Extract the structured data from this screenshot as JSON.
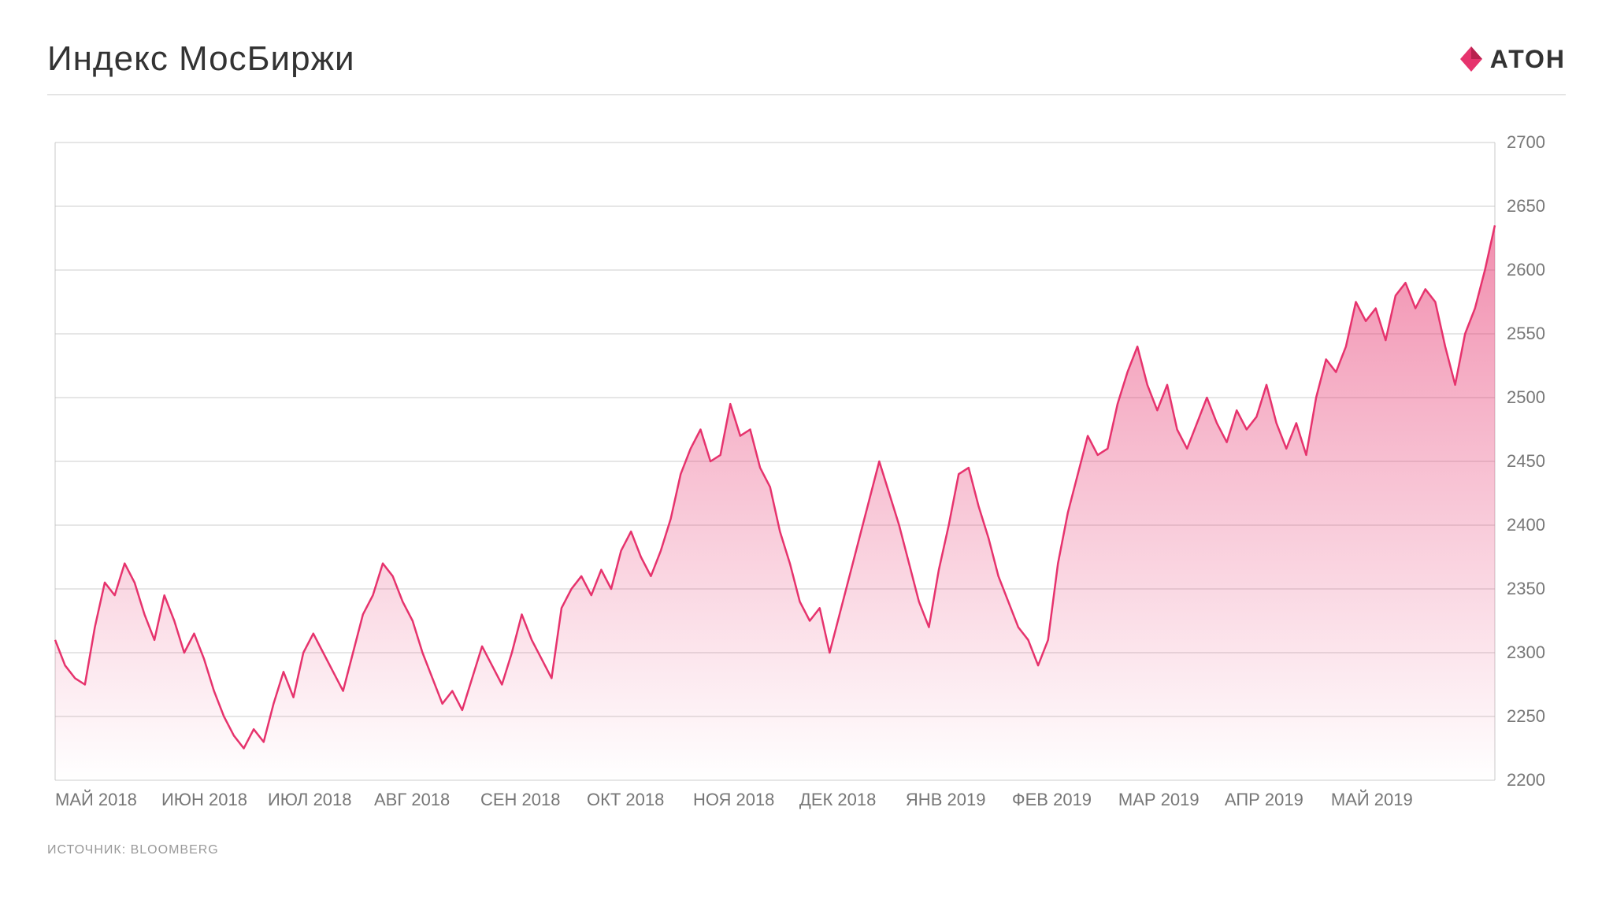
{
  "title": "Индекс МосБиржи",
  "logo_text": "АТОН",
  "source": "ИСТОЧНИК: BLOOMBERG",
  "chart": {
    "type": "area",
    "line_color": "#e6336d",
    "line_width": 2.5,
    "fill_gradient_top": "rgba(230,51,109,0.55)",
    "fill_gradient_bottom": "rgba(230,51,109,0.0)",
    "background_color": "#ffffff",
    "grid_color": "#bdbdbd",
    "grid_width": 0.8,
    "border_color": "#888888",
    "axis_text_color": "#777777",
    "axis_fontsize": 22,
    "ylim": [
      2200,
      2700
    ],
    "ytick_step": 50,
    "yticks": [
      2200,
      2250,
      2300,
      2350,
      2400,
      2450,
      2500,
      2550,
      2600,
      2650,
      2700
    ],
    "x_labels": [
      "МАЙ 2018",
      "ИЮН 2018",
      "ИЮЛ 2018",
      "АВГ 2018",
      "СЕН 2018",
      "ОКТ 2018",
      "НОЯ 2018",
      "ДЕК 2018",
      "ЯНВ 2019",
      "ФЕВ 2019",
      "МАР 2019",
      "АПР 2019",
      "МАЙ 2019"
    ],
    "values": [
      2310,
      2290,
      2280,
      2275,
      2320,
      2355,
      2345,
      2370,
      2355,
      2330,
      2310,
      2345,
      2325,
      2300,
      2315,
      2295,
      2270,
      2250,
      2235,
      2225,
      2240,
      2230,
      2260,
      2285,
      2265,
      2300,
      2315,
      2300,
      2285,
      2270,
      2300,
      2330,
      2345,
      2370,
      2360,
      2340,
      2325,
      2300,
      2280,
      2260,
      2270,
      2255,
      2280,
      2305,
      2290,
      2275,
      2300,
      2330,
      2310,
      2295,
      2280,
      2335,
      2350,
      2360,
      2345,
      2365,
      2350,
      2380,
      2395,
      2375,
      2360,
      2380,
      2405,
      2440,
      2460,
      2475,
      2450,
      2455,
      2495,
      2470,
      2475,
      2445,
      2430,
      2395,
      2370,
      2340,
      2325,
      2335,
      2300,
      2330,
      2360,
      2390,
      2420,
      2450,
      2425,
      2400,
      2370,
      2340,
      2320,
      2365,
      2400,
      2440,
      2445,
      2415,
      2390,
      2360,
      2340,
      2320,
      2310,
      2290,
      2310,
      2370,
      2410,
      2440,
      2470,
      2455,
      2460,
      2495,
      2520,
      2540,
      2510,
      2490,
      2510,
      2475,
      2460,
      2480,
      2500,
      2480,
      2465,
      2490,
      2475,
      2485,
      2510,
      2480,
      2460,
      2480,
      2455,
      2500,
      2530,
      2520,
      2540,
      2575,
      2560,
      2570,
      2545,
      2580,
      2590,
      2570,
      2585,
      2575,
      2540,
      2510,
      2550,
      2570,
      2600,
      2635
    ]
  }
}
